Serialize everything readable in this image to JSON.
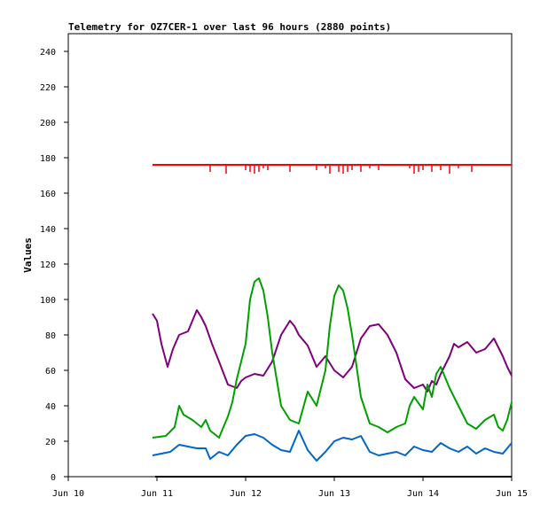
{
  "chart_data": {
    "type": "line",
    "title": "Telemetry for OZ7CER-1 over last 96 hours (2880 points)",
    "xlabel": "",
    "ylabel": "Values",
    "ylim": [
      0,
      250
    ],
    "yticks": [
      0,
      20,
      40,
      60,
      80,
      100,
      120,
      140,
      160,
      180,
      200,
      220,
      240
    ],
    "xlim": [
      0,
      5
    ],
    "xticks": [
      {
        "x": 0,
        "label": "Jun 10"
      },
      {
        "x": 1,
        "label": "Jun 11"
      },
      {
        "x": 2,
        "label": "Jun 12"
      },
      {
        "x": 3,
        "label": "Jun 13"
      },
      {
        "x": 4,
        "label": "Jun 14"
      },
      {
        "x": 5,
        "label": "Jun 15"
      }
    ],
    "grid": false,
    "legend": "none",
    "series": [
      {
        "color": "#ff0000",
        "x": [
          0.95,
          5.0
        ],
        "y": [
          176,
          176
        ]
      },
      {
        "color": "#7f007f",
        "x": [
          0.95,
          1.0,
          1.05,
          1.12,
          1.18,
          1.25,
          1.35,
          1.45,
          1.5,
          1.55,
          1.62,
          1.7,
          1.8,
          1.9,
          1.95,
          2.0,
          2.1,
          2.2,
          2.3,
          2.4,
          2.5,
          2.55,
          2.6,
          2.7,
          2.8,
          2.9,
          3.0,
          3.1,
          3.2,
          3.3,
          3.4,
          3.5,
          3.6,
          3.7,
          3.8,
          3.9,
          4.0,
          4.05,
          4.1,
          4.15,
          4.2,
          4.3,
          4.35,
          4.4,
          4.5,
          4.6,
          4.7,
          4.8,
          4.9,
          4.95,
          5.0
        ],
        "y": [
          92,
          88,
          75,
          62,
          72,
          80,
          82,
          94,
          90,
          85,
          75,
          65,
          52,
          50,
          54,
          56,
          58,
          57,
          65,
          80,
          88,
          85,
          80,
          74,
          62,
          68,
          60,
          56,
          62,
          78,
          85,
          86,
          80,
          70,
          55,
          50,
          52,
          48,
          54,
          52,
          58,
          68,
          75,
          73,
          76,
          70,
          72,
          78,
          68,
          62,
          57
        ]
      },
      {
        "color": "#00a000",
        "x": [
          0.95,
          1.1,
          1.2,
          1.25,
          1.3,
          1.4,
          1.5,
          1.55,
          1.6,
          1.7,
          1.8,
          1.85,
          1.9,
          2.0,
          2.05,
          2.1,
          2.15,
          2.2,
          2.25,
          2.3,
          2.35,
          2.4,
          2.5,
          2.6,
          2.7,
          2.8,
          2.9,
          2.95,
          3.0,
          3.05,
          3.1,
          3.15,
          3.2,
          3.3,
          3.4,
          3.5,
          3.6,
          3.7,
          3.8,
          3.85,
          3.9,
          4.0,
          4.05,
          4.1,
          4.15,
          4.2,
          4.3,
          4.4,
          4.5,
          4.6,
          4.7,
          4.8,
          4.85,
          4.9,
          4.95,
          5.0
        ],
        "y": [
          22,
          23,
          28,
          40,
          35,
          32,
          28,
          32,
          26,
          22,
          34,
          42,
          55,
          75,
          100,
          110,
          112,
          105,
          90,
          70,
          55,
          40,
          32,
          30,
          48,
          40,
          60,
          85,
          102,
          108,
          105,
          95,
          80,
          45,
          30,
          28,
          25,
          28,
          30,
          40,
          45,
          38,
          52,
          45,
          58,
          62,
          50,
          40,
          30,
          27,
          32,
          35,
          28,
          26,
          32,
          42
        ]
      },
      {
        "color": "#0066cc",
        "x": [
          0.95,
          1.05,
          1.15,
          1.25,
          1.35,
          1.45,
          1.55,
          1.6,
          1.7,
          1.8,
          1.9,
          2.0,
          2.1,
          2.2,
          2.3,
          2.4,
          2.5,
          2.6,
          2.7,
          2.8,
          2.9,
          3.0,
          3.1,
          3.2,
          3.3,
          3.4,
          3.5,
          3.6,
          3.7,
          3.8,
          3.9,
          4.0,
          4.1,
          4.2,
          4.3,
          4.4,
          4.5,
          4.6,
          4.7,
          4.8,
          4.9,
          5.0
        ],
        "y": [
          12,
          13,
          14,
          18,
          17,
          16,
          16,
          10,
          14,
          12,
          18,
          23,
          24,
          22,
          18,
          15,
          14,
          26,
          15,
          9,
          14,
          20,
          22,
          21,
          23,
          14,
          12,
          13,
          14,
          12,
          17,
          15,
          14,
          19,
          16,
          14,
          17,
          13,
          16,
          14,
          13,
          19
        ]
      }
    ],
    "spikes": [
      {
        "x": 1.6,
        "y": 172
      },
      {
        "x": 1.78,
        "y": 171
      },
      {
        "x": 2.0,
        "y": 173
      },
      {
        "x": 2.05,
        "y": 172
      },
      {
        "x": 2.1,
        "y": 171
      },
      {
        "x": 2.15,
        "y": 172
      },
      {
        "x": 2.2,
        "y": 174
      },
      {
        "x": 2.25,
        "y": 173
      },
      {
        "x": 2.5,
        "y": 172
      },
      {
        "x": 2.8,
        "y": 173
      },
      {
        "x": 2.9,
        "y": 174
      },
      {
        "x": 2.95,
        "y": 171
      },
      {
        "x": 3.05,
        "y": 172
      },
      {
        "x": 3.1,
        "y": 171
      },
      {
        "x": 3.15,
        "y": 172
      },
      {
        "x": 3.2,
        "y": 173
      },
      {
        "x": 3.3,
        "y": 172
      },
      {
        "x": 3.4,
        "y": 174
      },
      {
        "x": 3.5,
        "y": 173
      },
      {
        "x": 3.85,
        "y": 174
      },
      {
        "x": 3.9,
        "y": 171
      },
      {
        "x": 3.95,
        "y": 172
      },
      {
        "x": 4.0,
        "y": 173
      },
      {
        "x": 4.1,
        "y": 172
      },
      {
        "x": 4.2,
        "y": 173
      },
      {
        "x": 4.3,
        "y": 171
      },
      {
        "x": 4.4,
        "y": 174
      },
      {
        "x": 4.55,
        "y": 172
      }
    ]
  }
}
